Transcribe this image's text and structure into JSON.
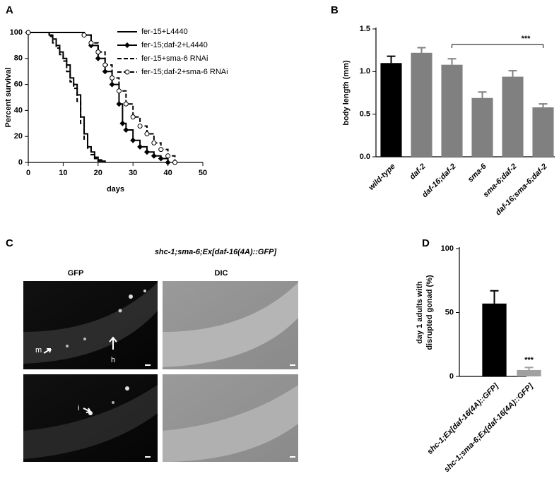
{
  "chart_data": [
    {
      "type": "line",
      "step": true,
      "panel": "A",
      "xlabel": "days",
      "ylabel": "Percent survival",
      "xlim": [
        0,
        50
      ],
      "xticks": [
        0,
        10,
        20,
        30,
        40,
        50
      ],
      "ylim": [
        0,
        100
      ],
      "yticks": [
        0,
        20,
        40,
        60,
        80,
        100
      ],
      "series": [
        {
          "name": "fer-15+L4440",
          "color": "#000000",
          "dash": "solid",
          "marker": "none",
          "x": [
            0,
            6,
            7,
            8,
            9,
            10,
            11,
            12,
            13,
            14,
            15,
            16,
            17,
            18,
            19,
            20,
            21,
            22
          ],
          "values": [
            100,
            98,
            95,
            90,
            85,
            80,
            75,
            65,
            60,
            52,
            35,
            22,
            12,
            8,
            4,
            2,
            1,
            0
          ]
        },
        {
          "name": "fer-15;daf-2+L4440",
          "color": "#000000",
          "dash": "solid",
          "marker": "diamond",
          "x": [
            0,
            16,
            18,
            20,
            22,
            24,
            26,
            27,
            28,
            30,
            32,
            34,
            36,
            38,
            40
          ],
          "values": [
            100,
            98,
            90,
            80,
            70,
            60,
            45,
            30,
            25,
            17,
            12,
            8,
            5,
            3,
            0
          ]
        },
        {
          "name": "fer-15+sma-6 RNAi",
          "color": "#000000",
          "dash": "dashed",
          "marker": "none",
          "x": [
            0,
            6,
            7,
            8,
            9,
            10,
            11,
            12,
            13,
            14,
            15,
            16,
            17,
            18,
            19,
            20,
            21
          ],
          "values": [
            100,
            97,
            92,
            88,
            83,
            78,
            70,
            62,
            57,
            47,
            30,
            18,
            11,
            6,
            3,
            1,
            0
          ]
        },
        {
          "name": "fer-15;daf-2+sma-6 RNAi",
          "color": "#000000",
          "dash": "dashed",
          "marker": "circle",
          "x": [
            0,
            16,
            18,
            20,
            22,
            24,
            26,
            28,
            30,
            32,
            34,
            36,
            38,
            40,
            42
          ],
          "values": [
            100,
            98,
            92,
            85,
            75,
            65,
            55,
            45,
            35,
            28,
            22,
            15,
            10,
            5,
            0
          ]
        }
      ]
    },
    {
      "type": "bar",
      "panel": "B",
      "ylabel": "body length (mm)",
      "categories": [
        "wild-type",
        "daf-2",
        "daf-16;daf-2",
        "sma-6",
        "sma-6;daf-2",
        "daf-16;sma-6;daf-2"
      ],
      "values": [
        1.1,
        1.22,
        1.08,
        0.69,
        0.94,
        0.58
      ],
      "errors": [
        0.08,
        0.06,
        0.07,
        0.07,
        0.07,
        0.04
      ],
      "colors": [
        "#000000",
        "#808080",
        "#808080",
        "#808080",
        "#808080",
        "#808080"
      ],
      "ylim": [
        0,
        1.5
      ],
      "yticks": [
        {
          "value": 0,
          "label": "0.0"
        },
        0.5,
        {
          "value": 1,
          "label": "1.0"
        },
        1.5
      ],
      "annotation": "***"
    },
    {
      "type": "bar",
      "panel": "D",
      "ylabel": [
        "day 1 adults with",
        "disrupted gonad (%)"
      ],
      "categories": [
        "shc-1;Ex[daf-16(4A)::GFP]",
        "shc-1;sma-6;Ex[daf-16(4A)::GFP]"
      ],
      "values": [
        57,
        5
      ],
      "errors": [
        10,
        2
      ],
      "colors": [
        "#000000",
        "#a0a0a0"
      ],
      "ylim": [
        0,
        100
      ],
      "yticks": [
        0,
        50,
        100
      ],
      "annotation": "***"
    }
  ],
  "panel_c": {
    "panel": "C",
    "title": "shc-1;sma-6;Ex[daf-16(4A)::GFP]",
    "left": "GFP",
    "right": "DIC",
    "arrows": [
      "m",
      "h",
      "i"
    ]
  }
}
